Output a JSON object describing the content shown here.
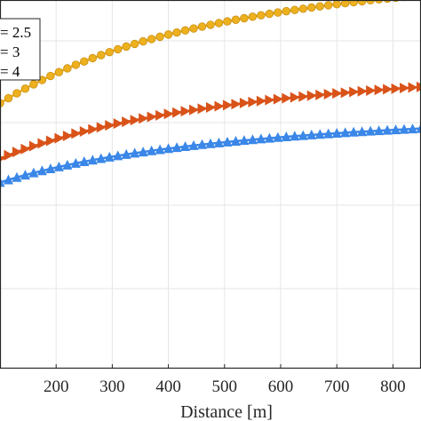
{
  "chart_data": {
    "type": "line",
    "xlabel": "Distance [m]",
    "ylabel": "",
    "x_ticks": [
      200,
      300,
      400,
      500,
      600,
      700,
      800
    ],
    "x_tick_labels": [
      "200",
      "300",
      "400",
      "500",
      "600",
      "700",
      "800"
    ],
    "xlim": [
      100,
      850
    ],
    "ylim": [
      0,
      1
    ],
    "grid": true,
    "legend_position": "top-left",
    "series": [
      {
        "name": "= 2.5",
        "color": "#EDB120",
        "marker": "circle",
        "x": [
          100,
          115,
          130,
          145,
          160,
          175,
          190,
          205,
          220,
          235,
          250,
          265,
          280,
          295,
          310,
          325,
          340,
          355,
          370,
          385,
          400,
          415,
          430,
          445,
          460,
          475,
          490,
          505,
          520,
          535,
          550,
          565,
          580,
          595,
          610,
          625,
          640,
          655,
          670,
          685,
          700,
          715,
          730,
          745,
          760,
          775,
          790,
          805,
          820,
          835,
          850
        ],
        "y": [
          0.72,
          0.7337,
          0.7468,
          0.7594,
          0.7714,
          0.7829,
          0.7939,
          0.8044,
          0.8145,
          0.8242,
          0.8334,
          0.8422,
          0.8506,
          0.8587,
          0.8664,
          0.8738,
          0.8809,
          0.8877,
          0.8941,
          0.9003,
          0.9063,
          0.912,
          0.9175,
          0.9228,
          0.9279,
          0.9328,
          0.9375,
          0.942,
          0.9464,
          0.9506,
          0.9547,
          0.9586,
          0.9624,
          0.9661,
          0.9696,
          0.9731,
          0.9764,
          0.9796,
          0.9827,
          0.9857,
          0.9886,
          0.9914,
          0.9941,
          0.9967,
          0.9992,
          1.0016,
          1.0039,
          1.0061,
          1.0082,
          1.0102,
          1.0121
        ]
      },
      {
        "name": "= 3",
        "color": "#D95319",
        "marker": "triangle-right",
        "x": [
          100,
          115,
          130,
          145,
          160,
          175,
          190,
          205,
          220,
          235,
          250,
          265,
          280,
          295,
          310,
          325,
          340,
          355,
          370,
          385,
          400,
          415,
          430,
          445,
          460,
          475,
          490,
          505,
          520,
          535,
          550,
          565,
          580,
          595,
          610,
          625,
          640,
          655,
          670,
          685,
          700,
          715,
          730,
          745,
          760,
          775,
          790,
          805,
          820,
          835,
          850
        ],
        "y": [
          0.57,
          0.579,
          0.5876,
          0.5958,
          0.6036,
          0.611,
          0.6181,
          0.6249,
          0.6314,
          0.6376,
          0.6435,
          0.6492,
          0.6546,
          0.6598,
          0.6648,
          0.6696,
          0.6742,
          0.6786,
          0.6829,
          0.687,
          0.6909,
          0.6947,
          0.6983,
          0.7018,
          0.7052,
          0.7085,
          0.7116,
          0.7147,
          0.7176,
          0.7205,
          0.7232,
          0.7259,
          0.7285,
          0.731,
          0.7334,
          0.7358,
          0.7381,
          0.7403,
          0.7425,
          0.7446,
          0.7466,
          0.7486,
          0.7505,
          0.7524,
          0.7542,
          0.756,
          0.7577,
          0.7594,
          0.761,
          0.7626,
          0.7641
        ]
      },
      {
        "name": "= 4",
        "color": "#3A87E8",
        "marker": "triangle-up",
        "x": [
          100,
          115,
          130,
          145,
          160,
          175,
          190,
          205,
          220,
          235,
          250,
          265,
          280,
          295,
          310,
          325,
          340,
          355,
          370,
          385,
          400,
          415,
          430,
          445,
          460,
          475,
          490,
          505,
          520,
          535,
          550,
          565,
          580,
          595,
          610,
          625,
          640,
          655,
          670,
          685,
          700,
          715,
          730,
          745,
          760,
          775,
          790,
          805,
          820,
          835,
          850
        ],
        "y": [
          0.505,
          0.512,
          0.5187,
          0.525,
          0.531,
          0.5367,
          0.5421,
          0.5473,
          0.5522,
          0.5569,
          0.5614,
          0.5657,
          0.5698,
          0.5737,
          0.5775,
          0.5811,
          0.5845,
          0.5878,
          0.591,
          0.5941,
          0.597,
          0.5998,
          0.6025,
          0.6052,
          0.6077,
          0.6101,
          0.6125,
          0.6148,
          0.617,
          0.6191,
          0.6212,
          0.6232,
          0.6251,
          0.627,
          0.6288,
          0.6306,
          0.6323,
          0.634,
          0.6356,
          0.6371,
          0.6386,
          0.6401,
          0.6415,
          0.6429,
          0.6442,
          0.6455,
          0.6468,
          0.648,
          0.6492,
          0.6504,
          0.6515
        ]
      }
    ]
  }
}
